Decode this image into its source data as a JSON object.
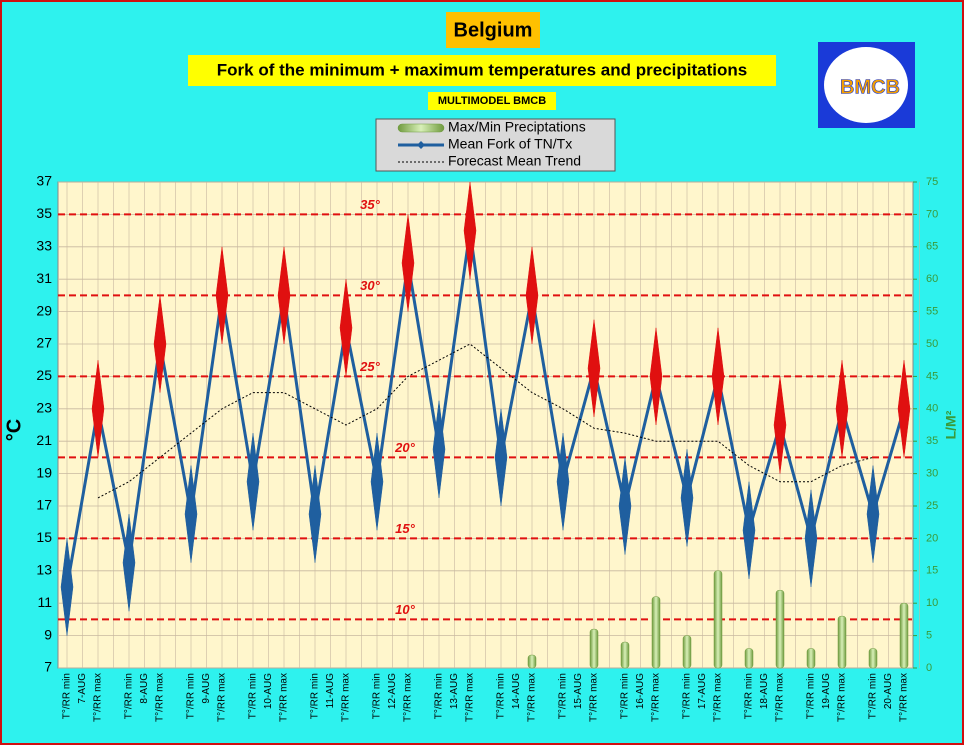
{
  "chart_data": {
    "type": "combo",
    "title": "Belgium",
    "subtitle": "Fork of the minimum + maximum temperatures and precipitations",
    "tag": "MULTIMODEL BMCB",
    "logo": "BMCB",
    "ylabel": "°C",
    "y2label": "L/M²",
    "categories": [
      "T°/RR min",
      "T°/RR max",
      "T°/RR min",
      "T°/RR max",
      "T°/RR min",
      "T°/RR max",
      "T°/RR min",
      "T°/RR max",
      "T°/RR min",
      "T°/RR max",
      "T°/RR min",
      "T°/RR max",
      "T°/RR min",
      "T°/RR max",
      "T°/RR min",
      "T°/RR max",
      "T°/RR min",
      "T°/RR max",
      "T°/RR min",
      "T°/RR max",
      "T°/RR min",
      "T°/RR max",
      "T°/RR min",
      "T°/RR max",
      "T°/RR min",
      "T°/RR max",
      "T°/RR min",
      "T°/RR max"
    ],
    "dates": [
      "7-AUG",
      "8-AUG",
      "9-AUG",
      "10-AUG",
      "11-AUG",
      "12-AUG",
      "13-AUG",
      "14-AUG",
      "15-AUG",
      "16-AUG",
      "17-AUG",
      "18-AUG",
      "19-AUG",
      "20-AUG"
    ],
    "series": [
      {
        "name": "Max/Min Preciptations",
        "type": "bar",
        "axis": "y2",
        "color": "#9bc26b",
        "values": [
          null,
          null,
          null,
          null,
          null,
          null,
          null,
          null,
          null,
          null,
          null,
          null,
          null,
          null,
          null,
          2,
          null,
          6,
          4,
          11,
          5,
          15,
          3,
          12,
          3,
          8,
          3,
          10
        ]
      },
      {
        "name": "Mean Fork of TN/Tx",
        "type": "line",
        "color": "#1f5f9f",
        "min_color": "#1f5f9f",
        "max_color": "#e01010",
        "values": [
          12,
          23,
          13.5,
          27,
          16.5,
          30,
          18.5,
          30,
          16.5,
          28,
          18.5,
          32,
          20.5,
          34,
          20,
          30,
          18.5,
          25.5,
          17,
          25,
          17.5,
          25,
          15.5,
          22,
          15,
          23,
          16.5,
          23
        ],
        "errors": [
          3,
          3,
          3,
          3,
          3,
          3,
          3,
          3,
          3,
          3,
          3,
          3,
          3,
          3,
          3,
          3,
          3,
          3,
          3,
          3,
          3,
          3,
          3,
          3,
          3,
          3,
          3,
          3
        ]
      },
      {
        "name": "Forecast Mean Trend",
        "type": "trend",
        "color": "#000000",
        "values": [
          null,
          17.5,
          18.5,
          20,
          21.5,
          23,
          24,
          24,
          23,
          22,
          23,
          25,
          26,
          27,
          25.5,
          24,
          23,
          21.8,
          21.5,
          21,
          21,
          21,
          19.5,
          18.5,
          18.5,
          19.5,
          20,
          null
        ]
      }
    ],
    "reference_lines": [
      {
        "value": 35,
        "label": "35°"
      },
      {
        "value": 30,
        "label": "30°"
      },
      {
        "value": 25,
        "label": "25°"
      },
      {
        "value": 20,
        "label": "20°"
      },
      {
        "value": 15,
        "label": "15°"
      },
      {
        "value": 10,
        "label": "10°"
      }
    ],
    "reference_color": "#e01010",
    "ylim": [
      7,
      37
    ],
    "yticks": [
      7,
      9,
      11,
      13,
      15,
      17,
      19,
      21,
      23,
      25,
      27,
      29,
      31,
      33,
      35,
      37
    ],
    "y2lim": [
      0,
      75
    ],
    "y2ticks": [
      0,
      5,
      10,
      15,
      20,
      25,
      30,
      35,
      40,
      45,
      50,
      55,
      60,
      65,
      70,
      75
    ],
    "grid": true
  }
}
